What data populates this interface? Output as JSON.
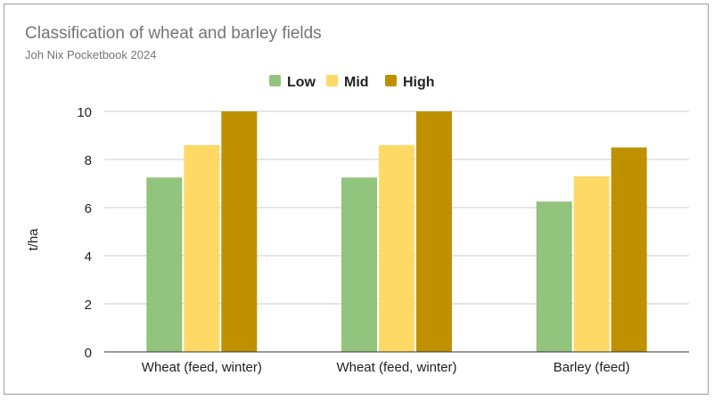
{
  "chart_data": {
    "type": "bar",
    "title": "Classification of wheat and barley fields",
    "subtitle": "Joh  Nix Pocketbook 2024",
    "xlabel": "",
    "ylabel": "t/ha",
    "ylim": [
      0,
      10
    ],
    "yticks": [
      0,
      2,
      4,
      6,
      8,
      10
    ],
    "grid": true,
    "legend_position": "top",
    "categories": [
      "Wheat (feed, winter)",
      "Wheat (feed, winter)",
      "Barley (feed)"
    ],
    "series": [
      {
        "name": "Low",
        "color": "#93c47d",
        "values": [
          7.25,
          7.25,
          6.25
        ]
      },
      {
        "name": "Mid",
        "color": "#ffd966",
        "values": [
          8.6,
          8.6,
          7.3
        ]
      },
      {
        "name": "High",
        "color": "#bf9000",
        "values": [
          10.0,
          10.0,
          8.5
        ]
      }
    ]
  }
}
